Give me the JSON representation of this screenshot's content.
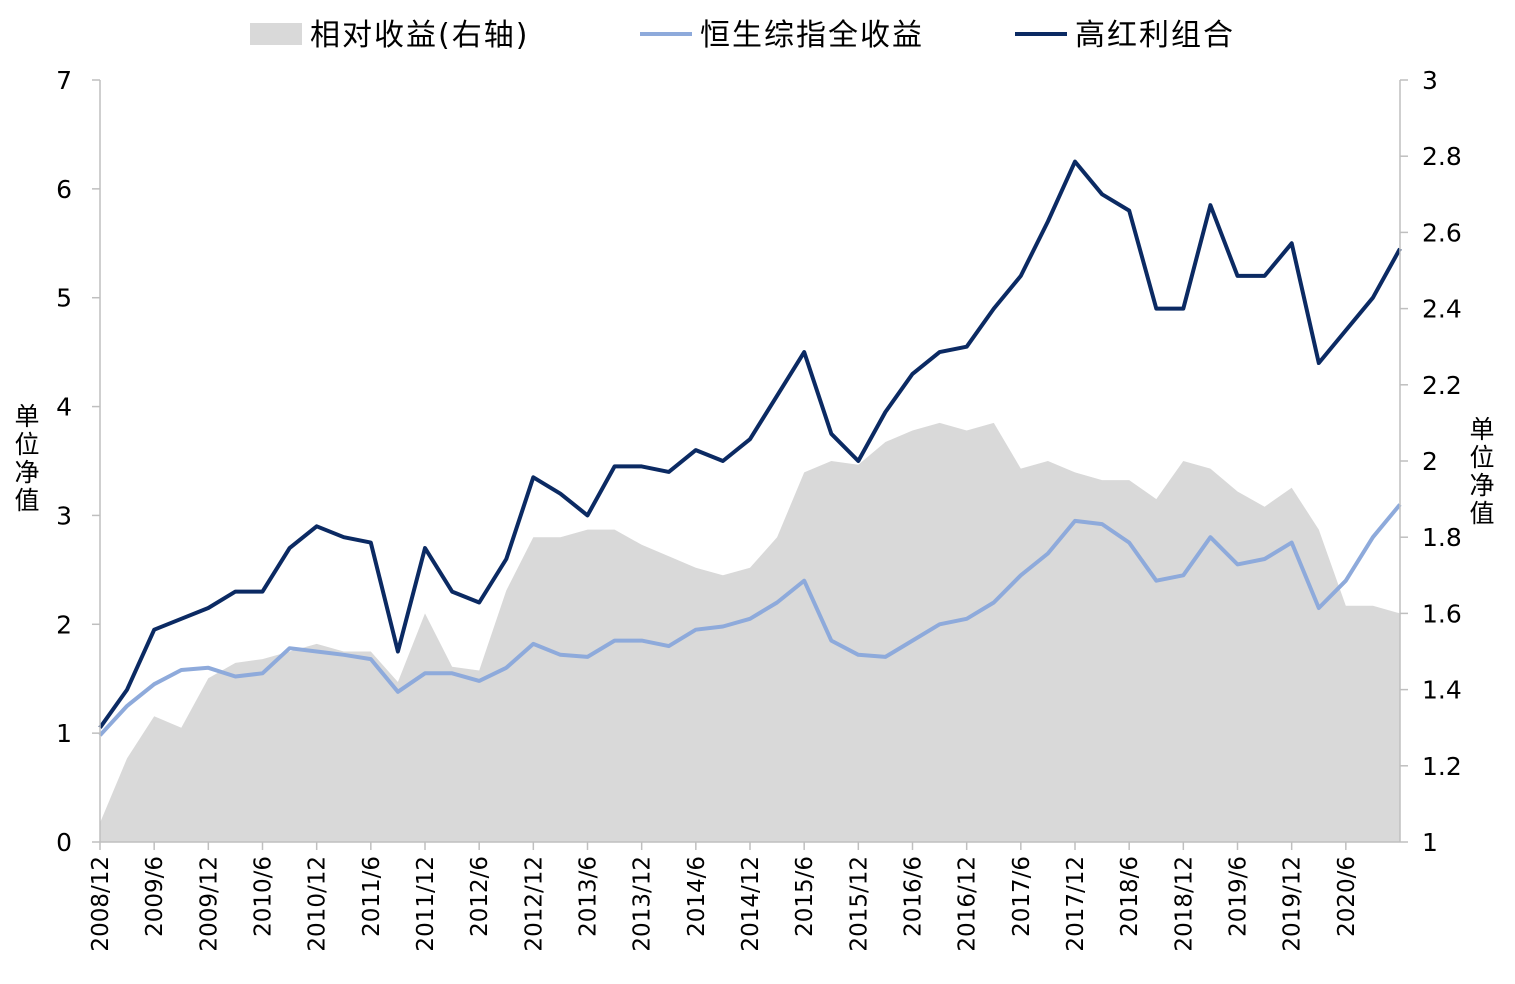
{
  "chart_data": {
    "type": "line",
    "legend": {
      "placement": "top",
      "entries": [
        {
          "name": "相对收益(右轴)",
          "kind": "area",
          "color": "#d9d9d9"
        },
        {
          "name": "恒生综指全收益",
          "kind": "line",
          "color": "#8eaadb"
        },
        {
          "name": "高红利组合",
          "kind": "line",
          "color": "#0b2a63"
        }
      ]
    },
    "ylabel": "单位净值",
    "y2label": "单位净值",
    "ylim": [
      0,
      7
    ],
    "y2lim": [
      1,
      3
    ],
    "yticks": [
      "0",
      "1",
      "2",
      "3",
      "4",
      "5",
      "6",
      "7"
    ],
    "y2ticks": [
      "1",
      "1.2",
      "1.4",
      "1.6",
      "1.8",
      "2",
      "2.2",
      "2.4",
      "2.6",
      "2.8",
      "3"
    ],
    "x": [
      "2008/12",
      "2009/3",
      "2009/6",
      "2009/9",
      "2009/12",
      "2010/3",
      "2010/6",
      "2010/9",
      "2010/12",
      "2011/3",
      "2011/6",
      "2011/9",
      "2011/12",
      "2012/3",
      "2012/6",
      "2012/9",
      "2012/12",
      "2013/3",
      "2013/6",
      "2013/9",
      "2013/12",
      "2014/3",
      "2014/6",
      "2014/9",
      "2014/12",
      "2015/3",
      "2015/6",
      "2015/9",
      "2015/12",
      "2016/3",
      "2016/6",
      "2016/9",
      "2016/12",
      "2017/3",
      "2017/6",
      "2017/9",
      "2017/12",
      "2018/3",
      "2018/6",
      "2018/9",
      "2018/12",
      "2019/3",
      "2019/6",
      "2019/9",
      "2019/12",
      "2020/3",
      "2020/6",
      "2020/9",
      "2020/12"
    ],
    "xticks": [
      "2008/12",
      "2009/6",
      "2009/12",
      "2010/6",
      "2010/12",
      "2011/6",
      "2011/12",
      "2012/6",
      "2012/12",
      "2013/6",
      "2013/12",
      "2014/6",
      "2014/12",
      "2015/6",
      "2015/12",
      "2016/6",
      "2016/12",
      "2017/6",
      "2017/12",
      "2018/6",
      "2018/12",
      "2019/6",
      "2019/12",
      "2020/6"
    ],
    "grid": false,
    "series": [
      {
        "name": "高红利组合",
        "axis": "left",
        "color": "#0b2a63",
        "values": [
          1.05,
          1.4,
          1.95,
          2.05,
          2.15,
          2.3,
          2.3,
          2.7,
          2.9,
          2.8,
          2.75,
          1.75,
          2.7,
          2.3,
          2.2,
          2.6,
          3.35,
          3.2,
          3.0,
          3.45,
          3.45,
          3.4,
          3.6,
          3.5,
          3.7,
          4.1,
          4.5,
          3.75,
          3.5,
          3.95,
          4.3,
          4.5,
          4.55,
          4.9,
          5.2,
          5.7,
          6.25,
          5.95,
          5.8,
          4.9,
          4.9,
          5.85,
          5.2,
          5.2,
          5.5,
          4.4,
          4.7,
          5.0,
          5.45
        ]
      },
      {
        "name": "恒生综指全收益",
        "axis": "left",
        "color": "#8eaadb",
        "values": [
          0.98,
          1.25,
          1.45,
          1.58,
          1.6,
          1.52,
          1.55,
          1.78,
          1.75,
          1.72,
          1.68,
          1.38,
          1.55,
          1.55,
          1.48,
          1.6,
          1.82,
          1.72,
          1.7,
          1.85,
          1.85,
          1.8,
          1.95,
          1.98,
          2.05,
          2.2,
          2.4,
          1.85,
          1.72,
          1.7,
          1.85,
          2.0,
          2.05,
          2.2,
          2.45,
          2.65,
          2.95,
          2.92,
          2.75,
          2.4,
          2.45,
          2.8,
          2.55,
          2.6,
          2.75,
          2.15,
          2.4,
          2.8,
          3.1
        ]
      },
      {
        "name": "相对收益(右轴)",
        "axis": "right",
        "type": "area",
        "color": "#d9d9d9",
        "values": [
          1.05,
          1.22,
          1.33,
          1.3,
          1.43,
          1.47,
          1.48,
          1.5,
          1.52,
          1.5,
          1.5,
          1.42,
          1.6,
          1.46,
          1.45,
          1.66,
          1.8,
          1.8,
          1.82,
          1.82,
          1.78,
          1.75,
          1.72,
          1.7,
          1.72,
          1.8,
          1.97,
          2.0,
          1.99,
          2.05,
          2.08,
          2.1,
          2.08,
          2.1,
          1.98,
          2.0,
          1.97,
          1.95,
          1.95,
          1.9,
          2.0,
          1.98,
          1.92,
          1.88,
          1.93,
          1.82,
          1.62,
          1.62,
          1.6
        ]
      }
    ]
  }
}
